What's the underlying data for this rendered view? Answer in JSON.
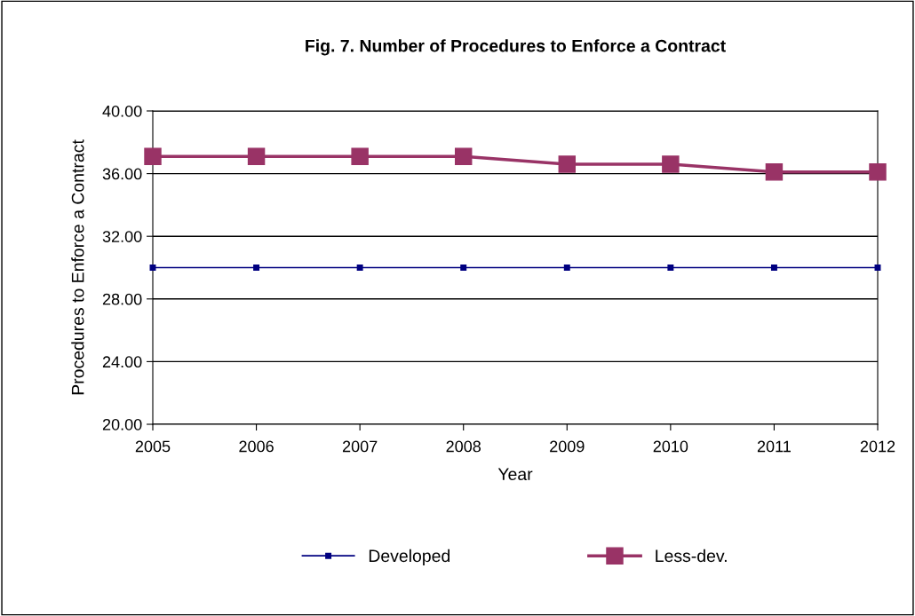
{
  "chart_data": {
    "type": "line",
    "title": "Fig. 7. Number of Procedures to Enforce a Contract",
    "xlabel": "Year",
    "ylabel": "Procedures to Enforce a Contract",
    "categories": [
      "2005",
      "2006",
      "2007",
      "2008",
      "2009",
      "2010",
      "2011",
      "2012"
    ],
    "series": [
      {
        "name": "Developed",
        "color": "#000080",
        "marker": "square",
        "values": [
          30.0,
          30.0,
          30.0,
          30.0,
          30.0,
          30.0,
          30.0,
          30.0
        ]
      },
      {
        "name": "Less-dev.",
        "color": "#993366",
        "marker": "square",
        "values": [
          37.1,
          37.1,
          37.1,
          37.1,
          36.6,
          36.6,
          36.1,
          36.1
        ]
      }
    ],
    "ylim": [
      20,
      40
    ],
    "yticks": [
      {
        "value": 20,
        "label": "20.00"
      },
      {
        "value": 24,
        "label": "24.00"
      },
      {
        "value": 28,
        "label": "28.00"
      },
      {
        "value": 32,
        "label": "32.00"
      },
      {
        "value": 36,
        "label": "36.00"
      },
      {
        "value": 40,
        "label": "40.00"
      }
    ],
    "grid": "y",
    "legend": "bottom",
    "line_style": "solid"
  }
}
